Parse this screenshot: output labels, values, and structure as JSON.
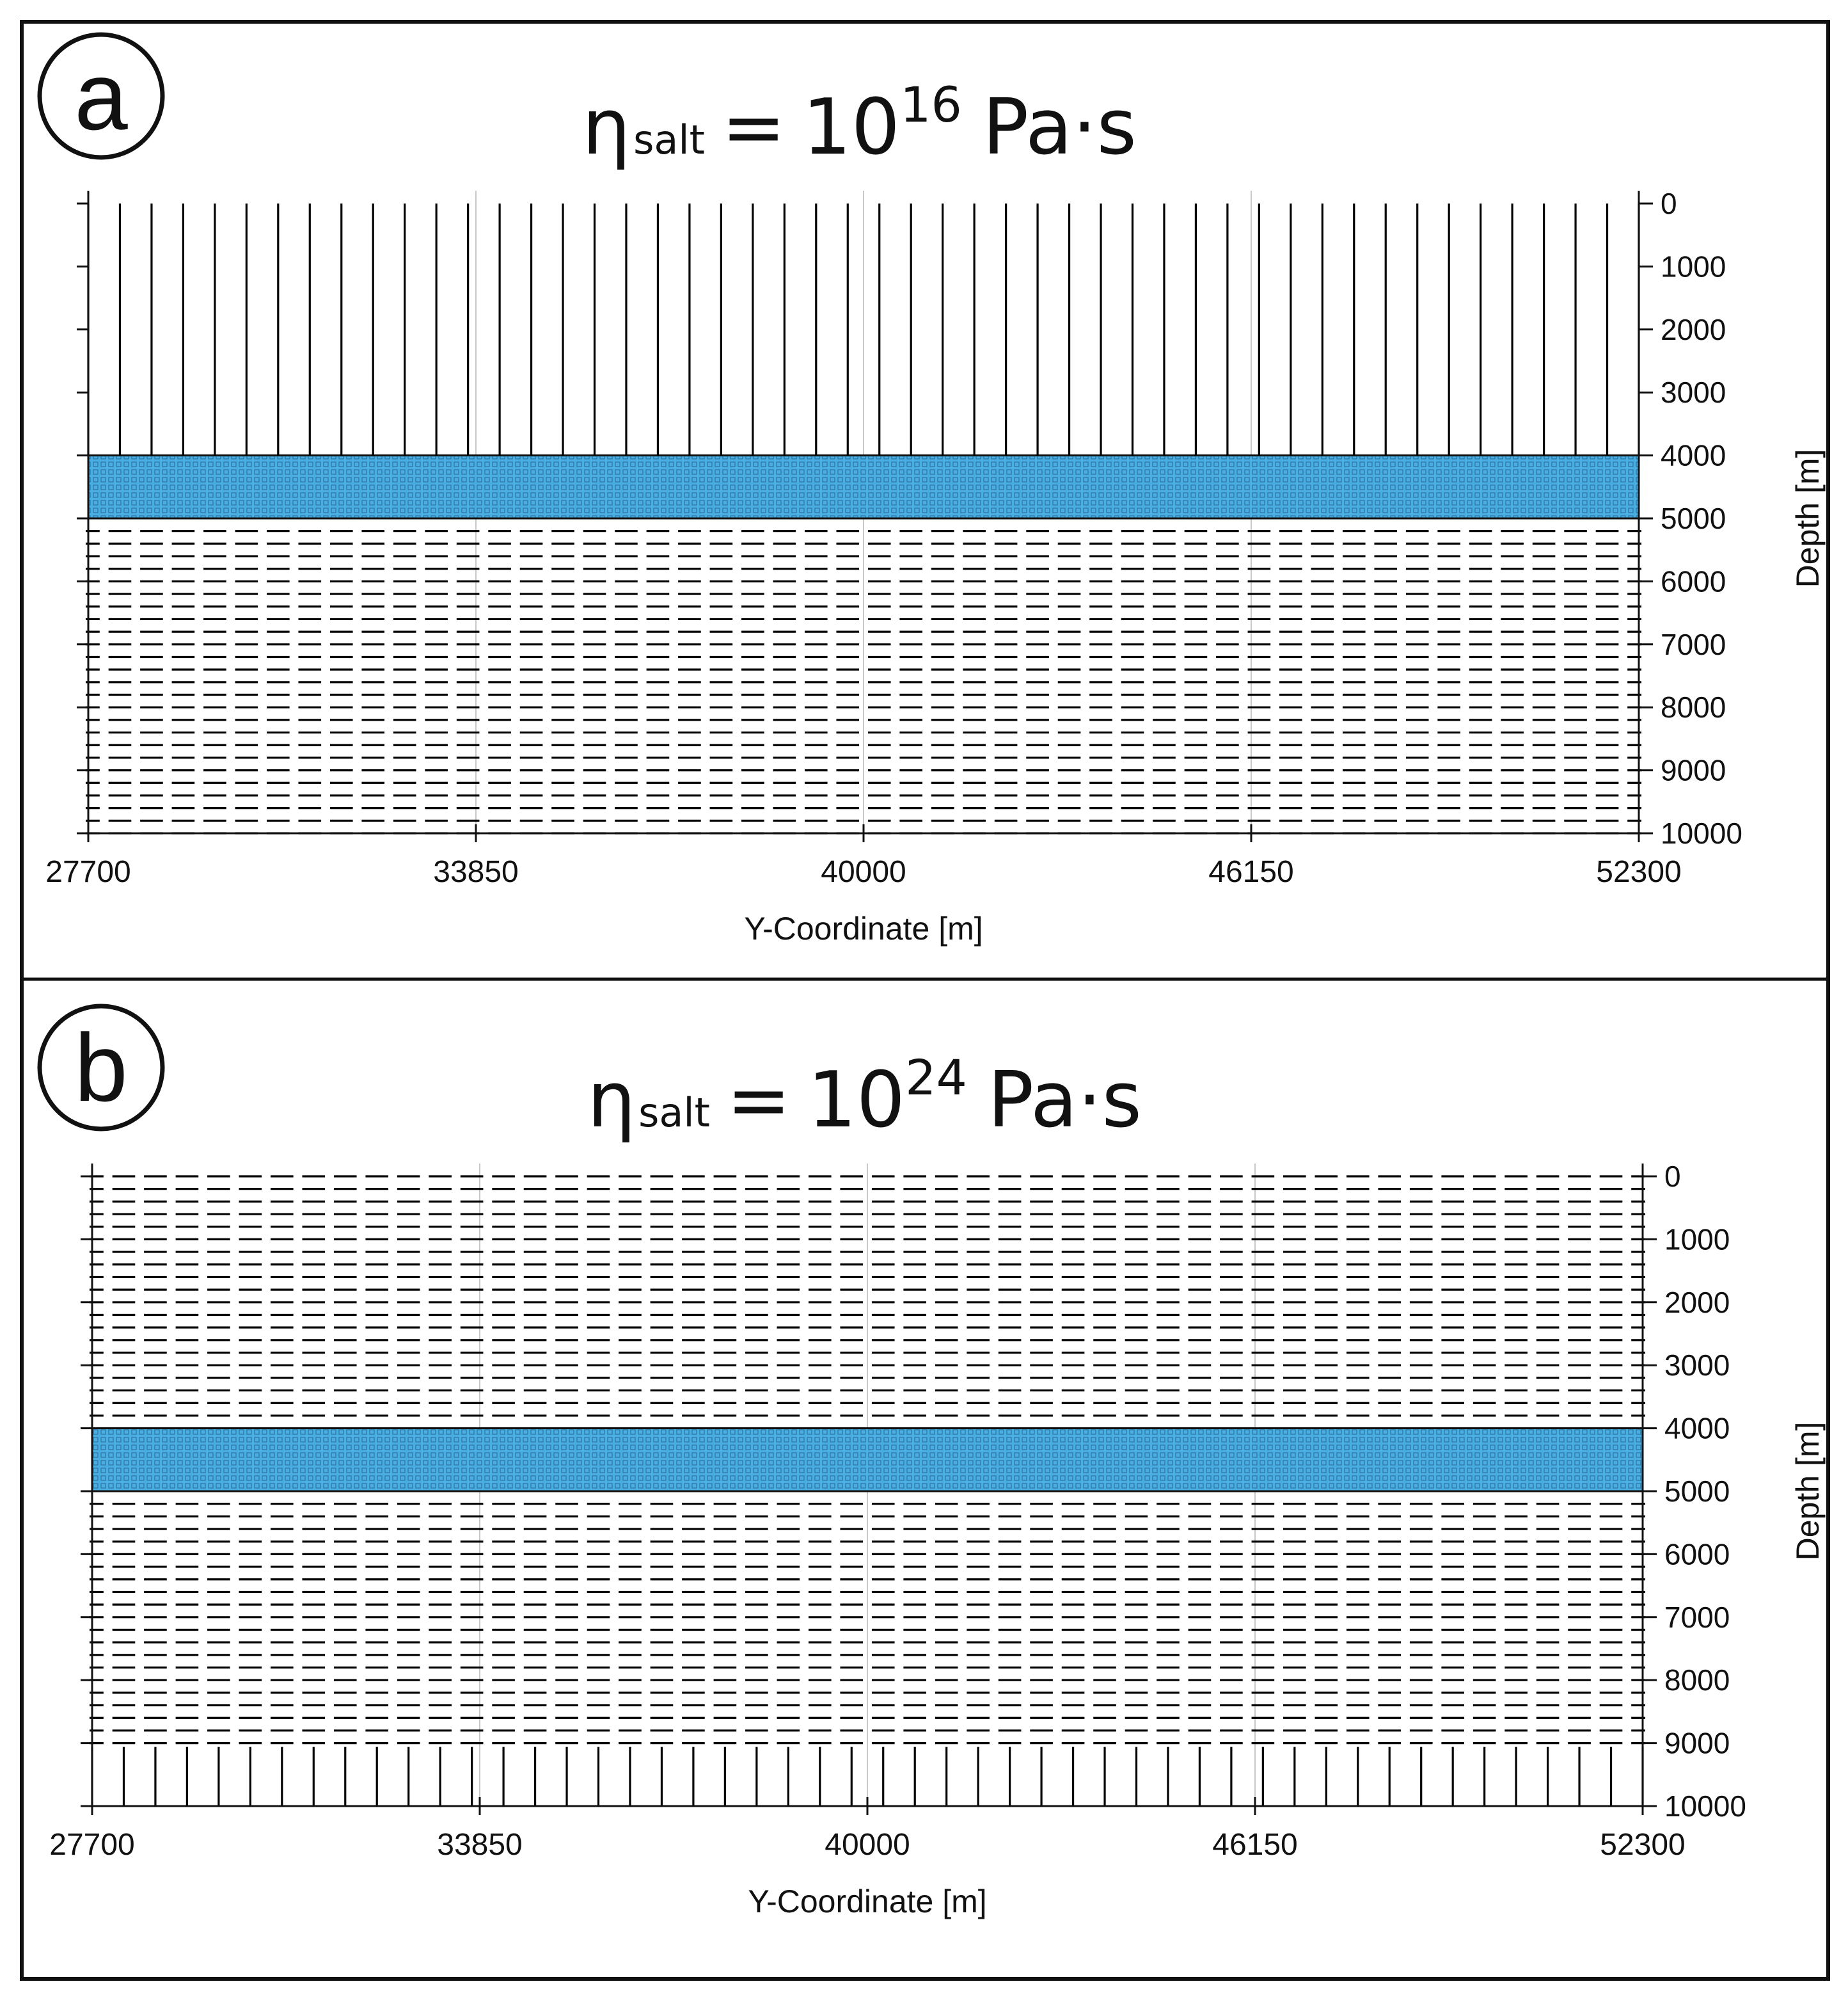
{
  "figure": {
    "panels": [
      {
        "label": "a",
        "title": {
          "symbol": "η",
          "subscript": "salt",
          "equals": "=",
          "base": "10",
          "exponent": "16",
          "unit": "Pa·s"
        }
      },
      {
        "label": "b",
        "title": {
          "symbol": "η",
          "subscript": "salt",
          "equals": "=",
          "base": "10",
          "exponent": "24",
          "unit": "Pa·s"
        }
      }
    ]
  },
  "colors": {
    "salt_layer": "#4aaee2",
    "salt_grid": "#1f5f86",
    "axis": "#111111",
    "border": "#111111"
  },
  "chart_data": [
    {
      "type": "vector-field",
      "panel": "a",
      "title": "ηsalt = 10^16 Pa·s",
      "xlabel": "Y-Coordinate [m]",
      "ylabel": "Depth [m]",
      "xlim": [
        27700,
        52300
      ],
      "ylim": [
        0,
        10000
      ],
      "x_ticks": [
        27700,
        33850,
        40000,
        46150,
        52300
      ],
      "x_tick_labels": [
        "27700",
        "33850",
        "40000",
        "46150",
        "52300"
      ],
      "y_ticks": [
        0,
        1000,
        2000,
        3000,
        4000,
        5000,
        6000,
        7000,
        8000,
        9000,
        10000
      ],
      "y_tick_labels": [
        "0",
        "1000",
        "2000",
        "3000",
        "4000",
        "5000",
        "6000",
        "7000",
        "8000",
        "9000",
        "10000"
      ],
      "salt_layer": {
        "top_depth": 4000,
        "bottom_depth": 5000
      },
      "stress_orientation": [
        {
          "depth_range": [
            0,
            4000
          ],
          "orientation": "vertical"
        },
        {
          "depth_range": [
            5000,
            10000
          ],
          "orientation": "horizontal"
        }
      ]
    },
    {
      "type": "vector-field",
      "panel": "b",
      "title": "ηsalt = 10^24 Pa·s",
      "xlabel": "Y-Coordinate [m]",
      "ylabel": "Depth [m]",
      "xlim": [
        27700,
        52300
      ],
      "ylim": [
        0,
        10000
      ],
      "x_ticks": [
        27700,
        33850,
        40000,
        46150,
        52300
      ],
      "x_tick_labels": [
        "27700",
        "33850",
        "40000",
        "46150",
        "52300"
      ],
      "y_ticks": [
        0,
        1000,
        2000,
        3000,
        4000,
        5000,
        6000,
        7000,
        8000,
        9000,
        10000
      ],
      "y_tick_labels": [
        "0",
        "1000",
        "2000",
        "3000",
        "4000",
        "5000",
        "6000",
        "7000",
        "8000",
        "9000",
        "10000"
      ],
      "salt_layer": {
        "top_depth": 4000,
        "bottom_depth": 5000
      },
      "stress_orientation": [
        {
          "depth_range": [
            0,
            4000
          ],
          "orientation": "horizontal"
        },
        {
          "depth_range": [
            5000,
            9000
          ],
          "orientation": "horizontal"
        },
        {
          "depth_range": [
            9000,
            10000
          ],
          "orientation": "vertical"
        }
      ]
    }
  ]
}
